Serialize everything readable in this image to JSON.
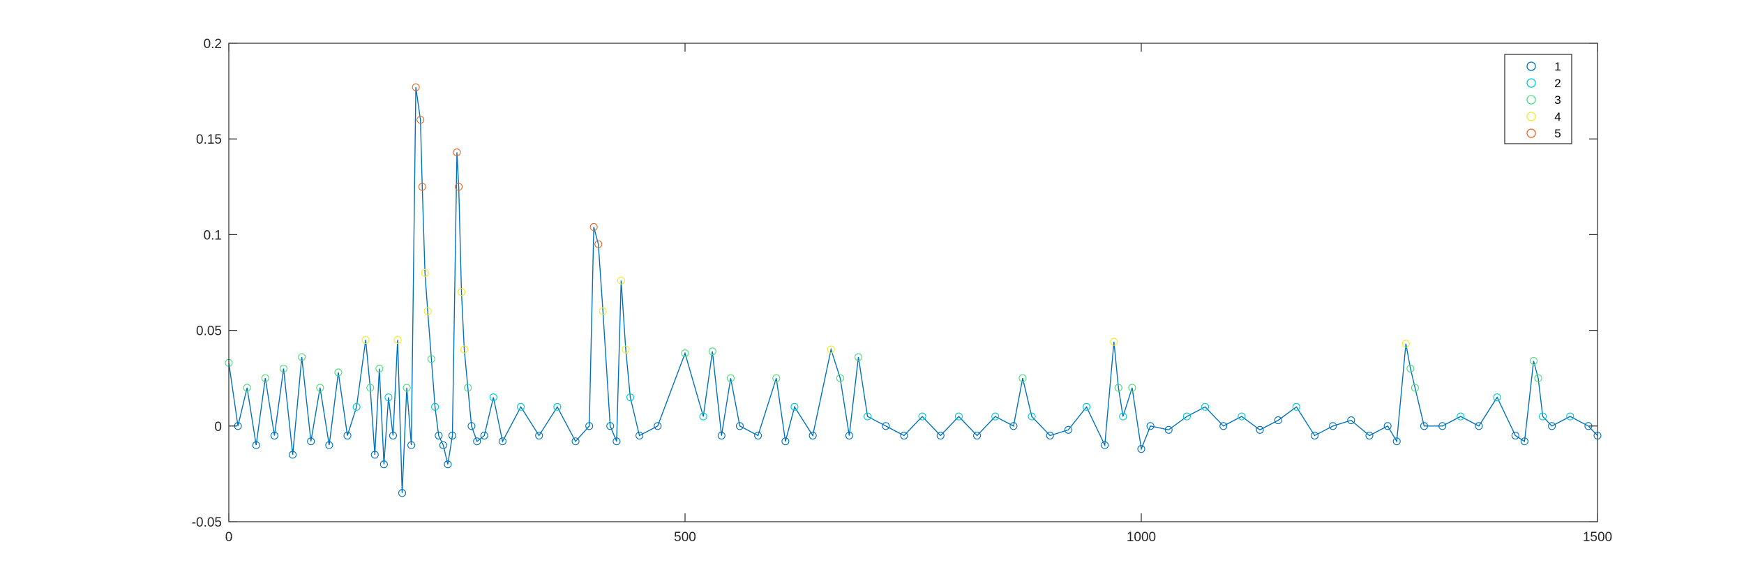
{
  "chart_data": {
    "type": "line",
    "title": "",
    "xlabel": "",
    "ylabel": "",
    "xlim": [
      0,
      1500
    ],
    "ylim": [
      -0.05,
      0.2
    ],
    "xticks": [
      0,
      500,
      1000,
      1500
    ],
    "yticks": [
      -0.05,
      0,
      0.05,
      0.1,
      0.15,
      0.2
    ],
    "xtick_labels": [
      "0",
      "500",
      "1000",
      "1500"
    ],
    "ytick_labels": [
      "-0.05",
      "0",
      "0.05",
      "0.1",
      "0.15",
      "0.2"
    ],
    "grid": false,
    "legend_position": "top-right",
    "line_color": "#0072bd",
    "legend": [
      {
        "label": "1",
        "color": "#0072bd"
      },
      {
        "label": "2",
        "color": "#00c8d7"
      },
      {
        "label": "3",
        "color": "#4ddd7a"
      },
      {
        "label": "4",
        "color": "#f0e92a"
      },
      {
        "label": "5",
        "color": "#e4692a"
      }
    ],
    "series": [
      {
        "x": [
          0,
          10,
          20,
          30,
          40,
          50,
          60,
          70,
          80,
          90,
          100,
          110,
          120,
          130,
          140,
          150,
          155,
          160,
          165,
          170,
          175,
          180,
          185,
          190,
          195,
          200,
          205,
          210,
          212,
          215,
          218,
          222,
          226,
          230,
          235,
          240,
          245,
          250,
          252,
          255,
          258,
          262,
          266,
          272,
          280,
          290,
          300,
          320,
          340,
          360,
          380,
          395,
          400,
          405,
          410,
          418,
          425,
          430,
          435,
          440,
          450,
          470,
          500,
          520,
          530,
          540,
          550,
          560,
          580,
          600,
          610,
          620,
          640,
          660,
          670,
          680,
          690,
          700,
          720,
          740,
          760,
          780,
          800,
          820,
          840,
          860,
          870,
          880,
          900,
          920,
          940,
          960,
          970,
          975,
          980,
          990,
          1000,
          1010,
          1030,
          1050,
          1070,
          1090,
          1110,
          1130,
          1150,
          1170,
          1190,
          1210,
          1230,
          1250,
          1270,
          1280,
          1290,
          1295,
          1300,
          1310,
          1330,
          1350,
          1370,
          1390,
          1410,
          1420,
          1430,
          1435,
          1440,
          1450,
          1470,
          1490,
          1500
        ],
        "y": [
          0.033,
          0.0,
          0.02,
          -0.01,
          0.025,
          -0.005,
          0.03,
          -0.015,
          0.036,
          -0.008,
          0.02,
          -0.01,
          0.028,
          -0.005,
          0.01,
          0.045,
          0.02,
          -0.015,
          0.03,
          -0.02,
          0.015,
          -0.005,
          0.045,
          -0.035,
          0.02,
          -0.01,
          0.177,
          0.16,
          0.125,
          0.08,
          0.06,
          0.035,
          0.01,
          -0.005,
          -0.01,
          -0.02,
          -0.005,
          0.143,
          0.125,
          0.07,
          0.04,
          0.02,
          0.0,
          -0.008,
          -0.005,
          0.015,
          -0.008,
          0.01,
          -0.005,
          0.01,
          -0.008,
          0.0,
          0.104,
          0.095,
          0.06,
          0.0,
          -0.008,
          0.076,
          0.04,
          0.015,
          -0.005,
          0.0,
          0.038,
          0.005,
          0.039,
          -0.005,
          0.025,
          0.0,
          -0.005,
          0.025,
          -0.008,
          0.01,
          -0.005,
          0.04,
          0.025,
          -0.005,
          0.036,
          0.005,
          0.0,
          -0.005,
          0.005,
          -0.005,
          0.005,
          -0.005,
          0.005,
          0.0,
          0.025,
          0.005,
          -0.005,
          -0.002,
          0.01,
          -0.01,
          0.044,
          0.02,
          0.005,
          0.02,
          -0.012,
          0.0,
          -0.002,
          0.005,
          0.01,
          0.0,
          0.005,
          -0.002,
          0.003,
          0.01,
          -0.005,
          0.0,
          0.003,
          -0.005,
          0.0,
          -0.008,
          0.043,
          0.03,
          0.02,
          0.0,
          0.0,
          0.005,
          0.0,
          0.015,
          -0.005,
          -0.008,
          0.034,
          0.025,
          0.005,
          0.0,
          0.005,
          0.0,
          -0.005
        ]
      }
    ]
  }
}
